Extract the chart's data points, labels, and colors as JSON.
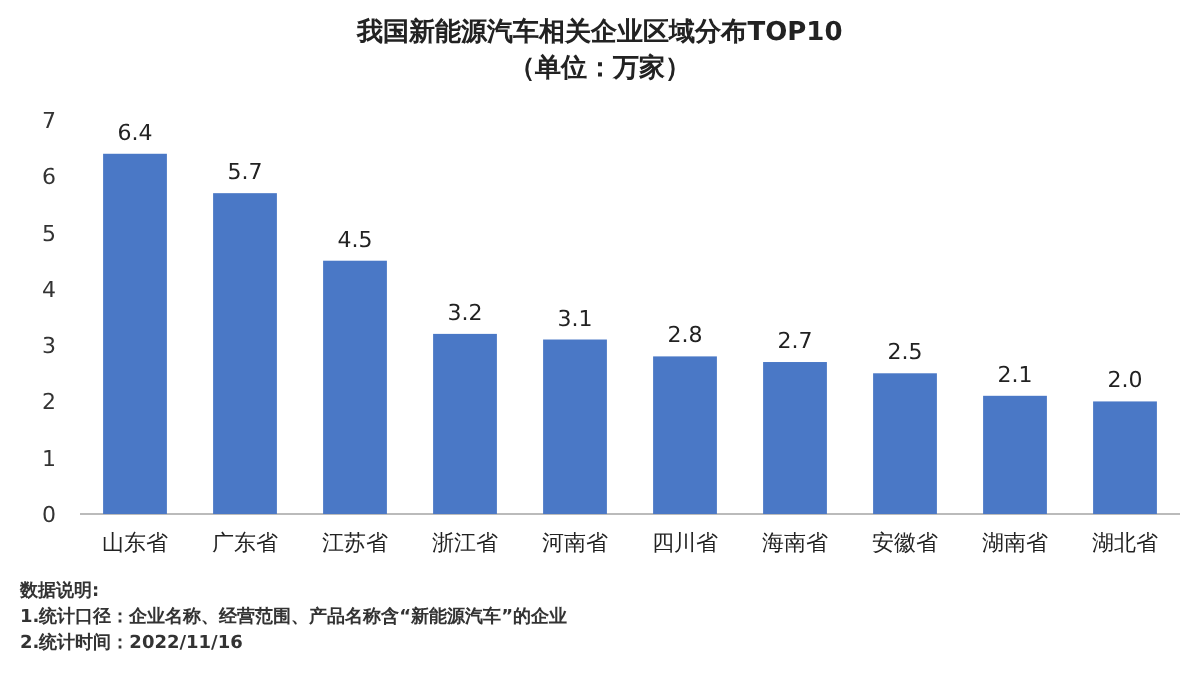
{
  "chart_data": {
    "type": "bar",
    "title": "我国新能源汽车相关企业区域分布TOP10",
    "subtitle": "（单位：万家）",
    "categories": [
      "山东省",
      "广东省",
      "江苏省",
      "浙江省",
      "河南省",
      "四川省",
      "海南省",
      "安徽省",
      "湖南省",
      "湖北省"
    ],
    "values": [
      6.4,
      5.7,
      4.5,
      3.2,
      3.1,
      2.8,
      2.7,
      2.5,
      2.1,
      2.0
    ],
    "value_labels": [
      "6.4",
      "5.7",
      "4.5",
      "3.2",
      "3.1",
      "2.8",
      "2.7",
      "2.5",
      "2.1",
      "2.0"
    ],
    "color": "#4a78c6",
    "ylim": [
      0,
      7
    ],
    "yticks": [
      0,
      1,
      2,
      3,
      4,
      5,
      6,
      7
    ],
    "grid": false,
    "annotations": [
      "数据说明:",
      "1.统计口径：企业名称、经营范围、产品名称含“新能源汽车”的企业",
      "2.统计时间：2022/11/16"
    ]
  }
}
